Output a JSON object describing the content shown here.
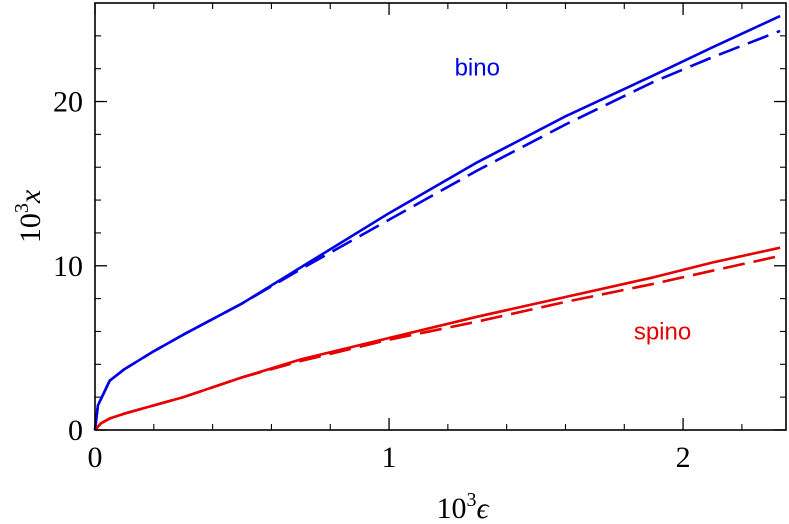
{
  "chart_data": {
    "type": "line",
    "title": "",
    "xlabel": {
      "base": "10",
      "sup": "3",
      "var": "ϵ"
    },
    "ylabel": {
      "base": "10",
      "sup": "3",
      "var": "x"
    },
    "xlim": [
      0,
      2.35
    ],
    "ylim": [
      0,
      26
    ],
    "xticks": [
      0,
      1,
      2
    ],
    "xtick_labels": [
      "0",
      "1",
      "2"
    ],
    "xminor": [
      0.2,
      0.4,
      0.6,
      0.8,
      1.2,
      1.4,
      1.6,
      1.8,
      2.2
    ],
    "yticks": [
      0,
      10,
      20
    ],
    "ytick_labels": [
      "0",
      "10",
      "20"
    ],
    "yminor": [
      2,
      4,
      6,
      8,
      12,
      14,
      16,
      18,
      22,
      24
    ],
    "grid": false,
    "colors": {
      "bino": "#0000e6",
      "spino": "#e60000"
    },
    "annotations": [
      {
        "text": "bino",
        "x": 1.3,
        "y": 21.6,
        "color": "#0000e6"
      },
      {
        "text": "spino",
        "x": 1.93,
        "y": 5.5,
        "color": "#e60000"
      }
    ],
    "series": [
      {
        "group": "bino",
        "style": "solid",
        "color": "#0000e6",
        "x": [
          0,
          0.01,
          0.05,
          0.1,
          0.2,
          0.3,
          0.5,
          0.7,
          1.0,
          1.3,
          1.6,
          1.9,
          2.1,
          2.33
        ],
        "y": [
          0,
          1.5,
          3.0,
          3.7,
          4.8,
          5.8,
          7.7,
          9.9,
          13.2,
          16.3,
          19.1,
          21.6,
          23.3,
          25.2
        ]
      },
      {
        "group": "bino",
        "style": "dashed",
        "color": "#0000e6",
        "x": [
          0,
          0.01,
          0.05,
          0.1,
          0.2,
          0.3,
          0.5,
          0.7,
          1.0,
          1.3,
          1.6,
          1.9,
          2.1,
          2.33
        ],
        "y": [
          0,
          1.5,
          3.0,
          3.7,
          4.8,
          5.8,
          7.7,
          9.8,
          12.8,
          15.8,
          18.6,
          21.2,
          22.7,
          24.3
        ]
      },
      {
        "group": "spino",
        "style": "solid",
        "color": "#e60000",
        "x": [
          0,
          0.02,
          0.05,
          0.1,
          0.2,
          0.3,
          0.5,
          0.7,
          1.0,
          1.3,
          1.6,
          1.9,
          2.1,
          2.33
        ],
        "y": [
          0,
          0.4,
          0.7,
          1.0,
          1.5,
          2.0,
          3.2,
          4.3,
          5.6,
          6.9,
          8.1,
          9.3,
          10.2,
          11.1
        ]
      },
      {
        "group": "spino",
        "style": "dashed",
        "color": "#e60000",
        "x": [
          0,
          0.02,
          0.05,
          0.1,
          0.2,
          0.3,
          0.5,
          0.7,
          1.0,
          1.3,
          1.6,
          1.9,
          2.1,
          2.33
        ],
        "y": [
          0,
          0.4,
          0.7,
          1.0,
          1.5,
          2.0,
          3.2,
          4.2,
          5.5,
          6.6,
          7.8,
          8.9,
          9.7,
          10.6
        ]
      }
    ]
  }
}
